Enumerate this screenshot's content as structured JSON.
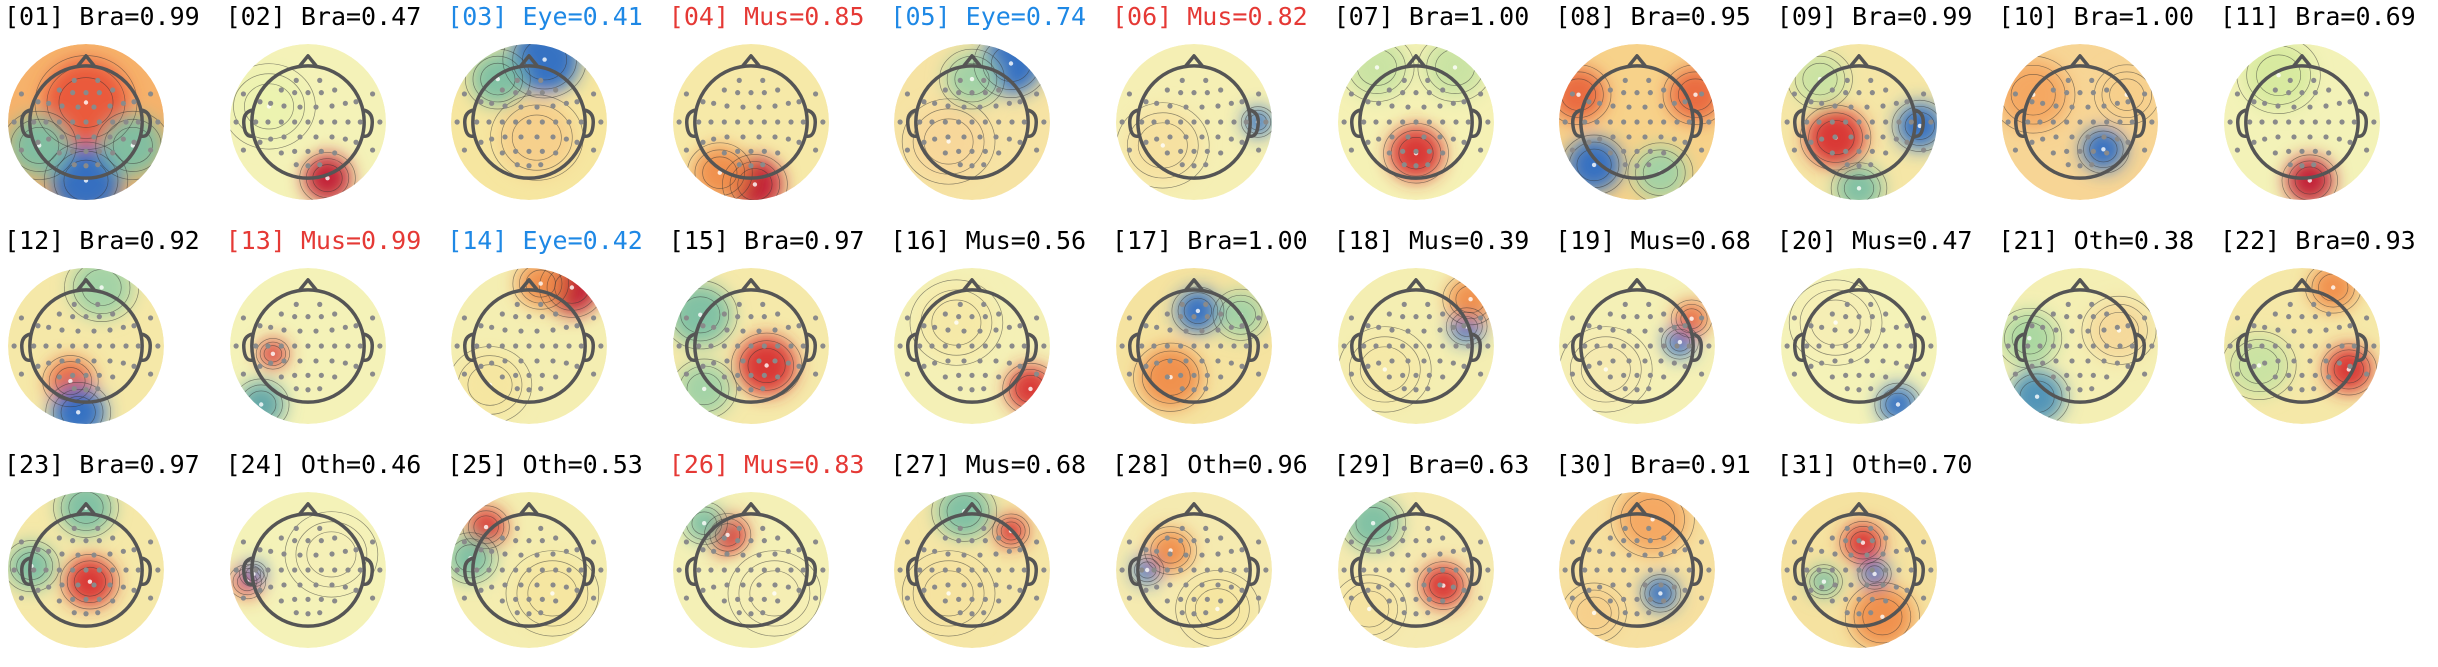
{
  "components": [
    {
      "label": "[01] Bra=0.99",
      "cls": "Bra",
      "color": "#000000",
      "blobs": [
        {
          "dx": 0,
          "dy": -0.25,
          "r": 0.55,
          "c": "#e9543a"
        },
        {
          "dx": 0,
          "dy": 0.75,
          "r": 0.45,
          "c": "#2b6cc4"
        },
        {
          "dx": -0.6,
          "dy": 0.3,
          "r": 0.4,
          "c": "#7bbfa3"
        },
        {
          "dx": 0.6,
          "dy": 0.3,
          "r": 0.4,
          "c": "#7bbfa3"
        }
      ],
      "bg": "#f6b26b"
    },
    {
      "label": "[02] Bra=0.47",
      "cls": "Bra",
      "color": "#000000",
      "blobs": [
        {
          "dx": 0.25,
          "dy": 0.72,
          "r": 0.3,
          "c": "#c0172f"
        },
        {
          "dx": -0.5,
          "dy": -0.2,
          "r": 0.5,
          "c": "#ecf2b0"
        }
      ],
      "bg": "#f4f2b8"
    },
    {
      "label": "[03] Eye=0.41",
      "cls": "Eye",
      "color": "#1e88e5",
      "blobs": [
        {
          "dx": 0.2,
          "dy": -0.8,
          "r": 0.45,
          "c": "#2b6cc4"
        },
        {
          "dx": -0.4,
          "dy": -0.55,
          "r": 0.35,
          "c": "#7bbfa3"
        },
        {
          "dx": 0.1,
          "dy": 0.2,
          "r": 0.5,
          "c": "#f7cf8a"
        }
      ],
      "bg": "#f6e6a0"
    },
    {
      "label": "[04] Mus=0.85",
      "cls": "Mus",
      "color": "#e53935",
      "blobs": [
        {
          "dx": 0.05,
          "dy": 0.8,
          "r": 0.35,
          "c": "#c0172f"
        },
        {
          "dx": -0.4,
          "dy": 0.65,
          "r": 0.35,
          "c": "#f08c4a"
        }
      ],
      "bg": "#f6e9a8"
    },
    {
      "label": "[05] Eye=0.74",
      "cls": "Eye",
      "color": "#1e88e5",
      "blobs": [
        {
          "dx": 0.5,
          "dy": -0.75,
          "r": 0.4,
          "c": "#2b6cc4"
        },
        {
          "dx": 0,
          "dy": -0.55,
          "r": 0.35,
          "c": "#9fd2a5"
        },
        {
          "dx": -0.3,
          "dy": 0.25,
          "r": 0.5,
          "c": "#f8d79a"
        }
      ],
      "bg": "#f6e3a4"
    },
    {
      "label": "[06] Mus=0.82",
      "cls": "Mus",
      "color": "#e53935",
      "blobs": [
        {
          "dx": 0.82,
          "dy": 0.0,
          "r": 0.18,
          "c": "#2b6cc4"
        },
        {
          "dx": -0.4,
          "dy": 0.3,
          "r": 0.5,
          "c": "#f7e0a0"
        }
      ],
      "bg": "#f5efb4"
    },
    {
      "label": "[07] Bra=1.00",
      "cls": "Bra",
      "color": "#000000",
      "blobs": [
        {
          "dx": 0,
          "dy": 0.4,
          "r": 0.35,
          "c": "#d8302f"
        },
        {
          "dx": -0.5,
          "dy": -0.7,
          "r": 0.4,
          "c": "#c8e3a2"
        },
        {
          "dx": 0.5,
          "dy": -0.7,
          "r": 0.4,
          "c": "#c8e3a2"
        }
      ],
      "bg": "#f5f1b5"
    },
    {
      "label": "[08] Bra=0.95",
      "cls": "Bra",
      "color": "#000000",
      "blobs": [
        {
          "dx": -0.55,
          "dy": 0.55,
          "r": 0.35,
          "c": "#2b6cc4"
        },
        {
          "dx": -0.75,
          "dy": -0.35,
          "r": 0.35,
          "c": "#e9663c"
        },
        {
          "dx": 0.75,
          "dy": -0.35,
          "r": 0.35,
          "c": "#e9663c"
        },
        {
          "dx": 0.3,
          "dy": 0.65,
          "r": 0.35,
          "c": "#9fd2a5"
        }
      ],
      "bg": "#f7d28a"
    },
    {
      "label": "[09] Bra=0.99",
      "cls": "Bra",
      "color": "#000000",
      "blobs": [
        {
          "dx": -0.3,
          "dy": 0.2,
          "r": 0.38,
          "c": "#d8302f"
        },
        {
          "dx": 0.78,
          "dy": 0.05,
          "r": 0.3,
          "c": "#2b6cc4"
        },
        {
          "dx": 0,
          "dy": 0.85,
          "r": 0.3,
          "c": "#7bbfa3"
        },
        {
          "dx": -0.5,
          "dy": -0.55,
          "r": 0.35,
          "c": "#c8e3a2"
        }
      ],
      "bg": "#f5e6a6"
    },
    {
      "label": "[10] Bra=1.00",
      "cls": "Bra",
      "color": "#000000",
      "blobs": [
        {
          "dx": 0.3,
          "dy": 0.35,
          "r": 0.28,
          "c": "#2b6cc4"
        },
        {
          "dx": -0.6,
          "dy": -0.35,
          "r": 0.45,
          "c": "#f4a55f"
        },
        {
          "dx": 0.6,
          "dy": -0.35,
          "r": 0.35,
          "c": "#f7cf8a"
        }
      ],
      "bg": "#f7d595"
    },
    {
      "label": "[11] Bra=0.69",
      "cls": "Bra",
      "color": "#000000",
      "blobs": [
        {
          "dx": 0.1,
          "dy": 0.75,
          "r": 0.3,
          "c": "#c0172f"
        },
        {
          "dx": -0.3,
          "dy": -0.6,
          "r": 0.45,
          "c": "#d6ea9e"
        }
      ],
      "bg": "#f3f2b8"
    },
    {
      "label": "[12] Bra=0.92",
      "cls": "Bra",
      "color": "#000000",
      "blobs": [
        {
          "dx": -0.2,
          "dy": 0.45,
          "r": 0.3,
          "c": "#e9663c"
        },
        {
          "dx": -0.1,
          "dy": 0.85,
          "r": 0.35,
          "c": "#2b6cc4"
        },
        {
          "dx": 0.2,
          "dy": -0.75,
          "r": 0.4,
          "c": "#9fd2a5"
        }
      ],
      "bg": "#f5e8a8"
    },
    {
      "label": "[13] Mus=0.99",
      "cls": "Mus",
      "color": "#e53935",
      "blobs": [
        {
          "dx": -0.45,
          "dy": 0.1,
          "r": 0.18,
          "c": "#d8302f"
        },
        {
          "dx": -0.6,
          "dy": 0.75,
          "r": 0.3,
          "c": "#5ea4a8"
        }
      ],
      "bg": "#f4f2b8"
    },
    {
      "label": "[14] Eye=0.42",
      "cls": "Eye",
      "color": "#1e88e5",
      "blobs": [
        {
          "dx": 0.55,
          "dy": -0.75,
          "r": 0.35,
          "c": "#c0172f"
        },
        {
          "dx": 0.15,
          "dy": -0.8,
          "r": 0.3,
          "c": "#f08c4a"
        },
        {
          "dx": -0.5,
          "dy": 0.5,
          "r": 0.45,
          "c": "#f6e6a0"
        }
      ],
      "bg": "#f4eeb2"
    },
    {
      "label": "[15] Bra=0.97",
      "cls": "Bra",
      "color": "#000000",
      "blobs": [
        {
          "dx": 0.2,
          "dy": 0.25,
          "r": 0.38,
          "c": "#d8302f"
        },
        {
          "dx": -0.65,
          "dy": -0.4,
          "r": 0.4,
          "c": "#7bbfa3"
        },
        {
          "dx": -0.6,
          "dy": 0.55,
          "r": 0.35,
          "c": "#9fd2a5"
        }
      ],
      "bg": "#f5e9aa"
    },
    {
      "label": "[16] Mus=0.56",
      "cls": "Mus",
      "color": "#000000",
      "blobs": [
        {
          "dx": 0.75,
          "dy": 0.55,
          "r": 0.3,
          "c": "#d8302f"
        },
        {
          "dx": -0.2,
          "dy": -0.3,
          "r": 0.5,
          "c": "#f6e9a8"
        }
      ],
      "bg": "#f4f0b6"
    },
    {
      "label": "[17] Bra=1.00",
      "cls": "Bra",
      "color": "#000000",
      "blobs": [
        {
          "dx": 0.05,
          "dy": -0.45,
          "r": 0.28,
          "c": "#2b6cc4"
        },
        {
          "dx": -0.3,
          "dy": 0.4,
          "r": 0.4,
          "c": "#f08c4a"
        },
        {
          "dx": 0.6,
          "dy": -0.4,
          "r": 0.3,
          "c": "#9fd2a5"
        }
      ],
      "bg": "#f5e3a0"
    },
    {
      "label": "[18] Mus=0.39",
      "cls": "Mus",
      "color": "#000000",
      "blobs": [
        {
          "dx": 0.65,
          "dy": -0.25,
          "r": 0.22,
          "c": "#2b6cc4"
        },
        {
          "dx": 0.7,
          "dy": -0.6,
          "r": 0.3,
          "c": "#f08c4a"
        },
        {
          "dx": -0.4,
          "dy": 0.3,
          "r": 0.5,
          "c": "#f6e9a8"
        }
      ],
      "bg": "#f4eeb2"
    },
    {
      "label": "[19] Mus=0.68",
      "cls": "Mus",
      "color": "#000000",
      "blobs": [
        {
          "dx": 0.55,
          "dy": -0.05,
          "r": 0.2,
          "c": "#2b6cc4"
        },
        {
          "dx": 0.7,
          "dy": -0.35,
          "r": 0.22,
          "c": "#e9663c"
        },
        {
          "dx": -0.4,
          "dy": 0.3,
          "r": 0.5,
          "c": "#f5eab0"
        }
      ],
      "bg": "#f4f0b6"
    },
    {
      "label": "[20] Mus=0.47",
      "cls": "Mus",
      "color": "#000000",
      "blobs": [
        {
          "dx": 0.5,
          "dy": 0.75,
          "r": 0.25,
          "c": "#2b6cc4"
        },
        {
          "dx": -0.3,
          "dy": -0.3,
          "r": 0.5,
          "c": "#f5eeb4"
        }
      ],
      "bg": "#f4f2b8"
    },
    {
      "label": "[21] Oth=0.38",
      "cls": "Oth",
      "color": "#000000",
      "blobs": [
        {
          "dx": -0.55,
          "dy": 0.65,
          "r": 0.35,
          "c": "#4a8fb8"
        },
        {
          "dx": -0.65,
          "dy": -0.1,
          "r": 0.35,
          "c": "#a7d6a0"
        },
        {
          "dx": 0.5,
          "dy": -0.2,
          "r": 0.4,
          "c": "#f6d89a"
        }
      ],
      "bg": "#f4efb4"
    },
    {
      "label": "[22] Bra=0.93",
      "cls": "Bra",
      "color": "#000000",
      "blobs": [
        {
          "dx": 0.6,
          "dy": 0.3,
          "r": 0.3,
          "c": "#d8302f"
        },
        {
          "dx": -0.55,
          "dy": 0.25,
          "r": 0.4,
          "c": "#c8e3a2"
        },
        {
          "dx": 0.4,
          "dy": -0.75,
          "r": 0.3,
          "c": "#f08c4a"
        }
      ],
      "bg": "#f5e8a8"
    },
    {
      "label": "[23] Bra=0.97",
      "cls": "Bra",
      "color": "#000000",
      "blobs": [
        {
          "dx": 0.05,
          "dy": 0.15,
          "r": 0.32,
          "c": "#d8302f"
        },
        {
          "dx": -0.7,
          "dy": -0.05,
          "r": 0.3,
          "c": "#7bbfa3"
        },
        {
          "dx": 0,
          "dy": -0.8,
          "r": 0.35,
          "c": "#7bbfa3"
        }
      ],
      "bg": "#f5e8a8"
    },
    {
      "label": "[24] Oth=0.46",
      "cls": "Oth",
      "color": "#000000",
      "blobs": [
        {
          "dx": -0.78,
          "dy": 0.15,
          "r": 0.2,
          "c": "#e9543a"
        },
        {
          "dx": -0.7,
          "dy": 0.05,
          "r": 0.15,
          "c": "#2b6cc4"
        },
        {
          "dx": 0.3,
          "dy": -0.2,
          "r": 0.5,
          "c": "#f5f0b6"
        }
      ],
      "bg": "#f4f2b8"
    },
    {
      "label": "[25] Oth=0.53",
      "cls": "Oth",
      "color": "#000000",
      "blobs": [
        {
          "dx": -0.55,
          "dy": -0.55,
          "r": 0.25,
          "c": "#d8302f"
        },
        {
          "dx": -0.75,
          "dy": -0.15,
          "r": 0.3,
          "c": "#7bbfa3"
        },
        {
          "dx": 0.3,
          "dy": 0.3,
          "r": 0.5,
          "c": "#f6e6a0"
        }
      ],
      "bg": "#f4edb0"
    },
    {
      "label": "[26] Mus=0.83",
      "cls": "Mus",
      "color": "#e53935",
      "blobs": [
        {
          "dx": -0.3,
          "dy": -0.45,
          "r": 0.25,
          "c": "#d8302f"
        },
        {
          "dx": -0.6,
          "dy": -0.6,
          "r": 0.25,
          "c": "#7bbfa3"
        },
        {
          "dx": 0.3,
          "dy": 0.3,
          "r": 0.5,
          "c": "#f5eeb4"
        }
      ],
      "bg": "#f4f0b6"
    },
    {
      "label": "[27] Mus=0.68",
      "cls": "Mus",
      "color": "#000000",
      "blobs": [
        {
          "dx": 0.5,
          "dy": -0.5,
          "r": 0.2,
          "c": "#d8302f"
        },
        {
          "dx": -0.1,
          "dy": -0.75,
          "r": 0.35,
          "c": "#7bbfa3"
        },
        {
          "dx": -0.3,
          "dy": 0.3,
          "r": 0.5,
          "c": "#f6e3a0"
        }
      ],
      "bg": "#f5e6a6"
    },
    {
      "label": "[28] Oth=0.96",
      "cls": "Oth",
      "color": "#000000",
      "blobs": [
        {
          "dx": -0.6,
          "dy": 0.0,
          "r": 0.18,
          "c": "#2b6cc4"
        },
        {
          "dx": -0.3,
          "dy": -0.25,
          "r": 0.28,
          "c": "#f08c4a"
        },
        {
          "dx": 0.3,
          "dy": 0.5,
          "r": 0.45,
          "c": "#f6e6a0"
        }
      ],
      "bg": "#f5eab0"
    },
    {
      "label": "[29] Bra=0.63",
      "cls": "Bra",
      "color": "#000000",
      "blobs": [
        {
          "dx": 0.35,
          "dy": 0.2,
          "r": 0.28,
          "c": "#d8302f"
        },
        {
          "dx": -0.55,
          "dy": -0.6,
          "r": 0.35,
          "c": "#7bbfa3"
        },
        {
          "dx": -0.6,
          "dy": 0.5,
          "r": 0.4,
          "c": "#f6e3a0"
        }
      ],
      "bg": "#f5eab0"
    },
    {
      "label": "[30] Bra=0.91",
      "cls": "Bra",
      "color": "#000000",
      "blobs": [
        {
          "dx": 0.3,
          "dy": 0.3,
          "r": 0.22,
          "c": "#2b6cc4"
        },
        {
          "dx": 0.2,
          "dy": -0.65,
          "r": 0.45,
          "c": "#f4a55f"
        },
        {
          "dx": -0.55,
          "dy": 0.55,
          "r": 0.35,
          "c": "#f7cf8a"
        }
      ],
      "bg": "#f6e0a0"
    },
    {
      "label": "[31] Oth=0.70",
      "cls": "Oth",
      "color": "#000000",
      "blobs": [
        {
          "dx": 0.05,
          "dy": -0.35,
          "r": 0.25,
          "c": "#d8302f"
        },
        {
          "dx": 0.2,
          "dy": 0.05,
          "r": 0.18,
          "c": "#2b6cc4"
        },
        {
          "dx": -0.45,
          "dy": 0.15,
          "r": 0.2,
          "c": "#7bbfa3"
        },
        {
          "dx": 0.3,
          "dy": 0.6,
          "r": 0.4,
          "c": "#f08c4a"
        }
      ],
      "bg": "#f5e2a0"
    }
  ]
}
